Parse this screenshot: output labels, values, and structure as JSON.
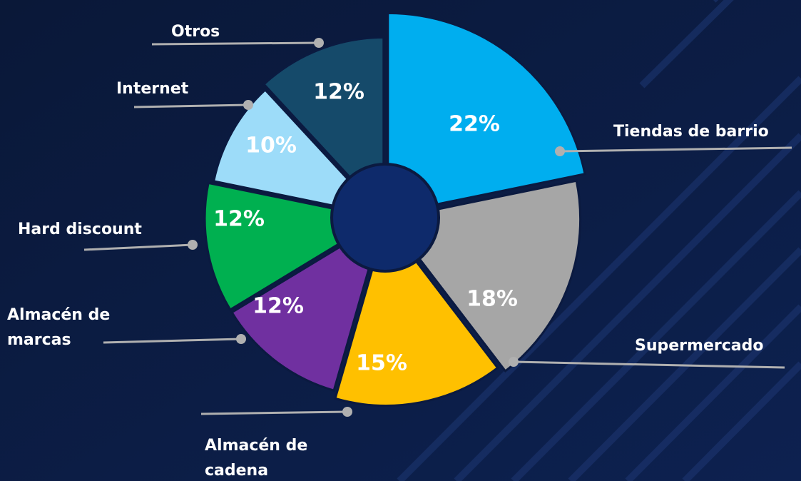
{
  "chart_data": {
    "type": "pie",
    "categories": [
      "Tiendas de barrio",
      "Supermercado",
      "Almacén de cadena",
      "Almacén de marcas",
      "Hard discount",
      "Internet",
      "Otros"
    ],
    "values": [
      22,
      18,
      15,
      12,
      12,
      10,
      12
    ],
    "value_labels": [
      "22%",
      "18%",
      "15%",
      "12%",
      "12%",
      "10%",
      "12%"
    ],
    "colors": [
      "#00aeef",
      "#a6a6a6",
      "#ffc000",
      "#7030a0",
      "#00b050",
      "#9ddcf9",
      "#154a6a"
    ]
  }
}
